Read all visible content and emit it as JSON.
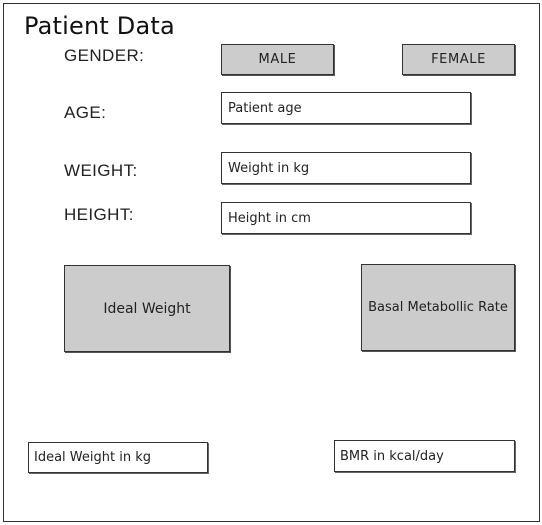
{
  "page": {
    "title": "Patient Data"
  },
  "gender": {
    "label": "GENDER:",
    "male_label": "MALE",
    "female_label": "FEMALE"
  },
  "age": {
    "label": "AGE:",
    "placeholder": "Patient age"
  },
  "weight": {
    "label": "WEIGHT:",
    "placeholder": "Weight in kg"
  },
  "height": {
    "label": "HEIGHT:",
    "placeholder": "Height in cm"
  },
  "actions": {
    "ideal_weight_label": "Ideal Weight",
    "bmr_label": "Basal Metabollic Rate"
  },
  "results": {
    "ideal_weight_output": "Ideal Weight in kg",
    "bmr_output": "BMR in kcal/day"
  }
}
